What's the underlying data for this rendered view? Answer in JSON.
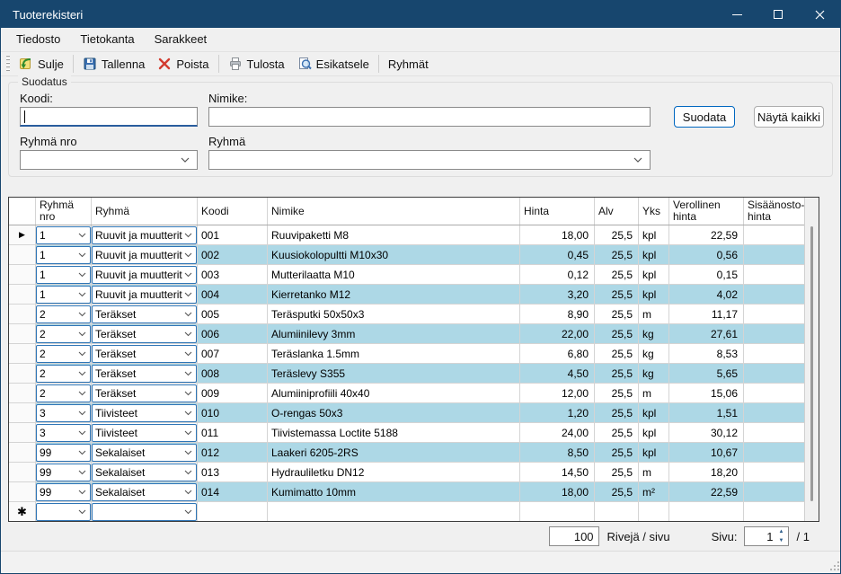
{
  "window": {
    "title": "Tuoterekisteri",
    "buttons": [
      "minimize-icon",
      "maximize-icon",
      "close-icon"
    ]
  },
  "colors": {
    "titlebar": "#17466E",
    "row_highlight": "#ADD8E6",
    "combo_border": "#2E75B6",
    "focus_accent": "#2A5D9E",
    "primary_button_border": "#0067C0"
  },
  "menu": {
    "items": [
      "Tiedosto",
      "Tietokanta",
      "Sarakkeet"
    ]
  },
  "toolbar": {
    "buttons": [
      {
        "label": "Sulje",
        "icon": "exit-icon",
        "sep_after": true
      },
      {
        "label": "Tallenna",
        "icon": "save-icon",
        "sep_after": false
      },
      {
        "label": "Poista",
        "icon": "delete-icon",
        "sep_after": true
      },
      {
        "label": "Tulosta",
        "icon": "print-icon",
        "sep_after": false
      },
      {
        "label": "Esikatsele",
        "icon": "preview-icon",
        "sep_after": true
      },
      {
        "label": "Ryhmät",
        "icon": "",
        "sep_after": false
      }
    ]
  },
  "filter": {
    "group_label": "Suodatus",
    "koodi_label": "Koodi:",
    "koodi_value": "",
    "nimike_label": "Nimike:",
    "nimike_value": "",
    "ryhma_nro_label": "Ryhmä nro",
    "ryhma_nro_value": "",
    "ryhma_label": "Ryhmä",
    "ryhma_value": "",
    "suodata_button": "Suodata",
    "nayta_kaikki_button": "Näytä kaikki"
  },
  "grid": {
    "columns": [
      "",
      "Ryhmä\nnro",
      "Ryhmä",
      "Koodi",
      "Nimike",
      "Hinta",
      "Alv",
      "Yks",
      "Verollinen\nhinta",
      "Sisäänosto-\nhinta"
    ],
    "rows": [
      {
        "marker": "arrow",
        "ryhma_nro": "1",
        "ryhma": "Ruuvit ja muutterit",
        "koodi": "001",
        "nimike": "Ruuvipaketti M8",
        "hinta": "18,00",
        "alv": "25,5",
        "yks": "kpl",
        "verollinen": "22,59",
        "sisaanosto": ""
      },
      {
        "marker": "",
        "ryhma_nro": "1",
        "ryhma": "Ruuvit ja muutterit",
        "koodi": "002",
        "nimike": "Kuusiokolopultti M10x30",
        "hinta": "0,45",
        "alv": "25,5",
        "yks": "kpl",
        "verollinen": "0,56",
        "sisaanosto": ""
      },
      {
        "marker": "",
        "ryhma_nro": "1",
        "ryhma": "Ruuvit ja muutterit",
        "koodi": "003",
        "nimike": "Mutterilaatta M10",
        "hinta": "0,12",
        "alv": "25,5",
        "yks": "kpl",
        "verollinen": "0,15",
        "sisaanosto": ""
      },
      {
        "marker": "",
        "ryhma_nro": "1",
        "ryhma": "Ruuvit ja muutterit",
        "koodi": "004",
        "nimike": "Kierretanko M12",
        "hinta": "3,20",
        "alv": "25,5",
        "yks": "kpl",
        "verollinen": "4,02",
        "sisaanosto": ""
      },
      {
        "marker": "",
        "ryhma_nro": "2",
        "ryhma": "Teräkset",
        "koodi": "005",
        "nimike": "Teräsputki 50x50x3",
        "hinta": "8,90",
        "alv": "25,5",
        "yks": "m",
        "verollinen": "11,17",
        "sisaanosto": ""
      },
      {
        "marker": "",
        "ryhma_nro": "2",
        "ryhma": "Teräkset",
        "koodi": "006",
        "nimike": "Alumiinilevy 3mm",
        "hinta": "22,00",
        "alv": "25,5",
        "yks": "kg",
        "verollinen": "27,61",
        "sisaanosto": ""
      },
      {
        "marker": "",
        "ryhma_nro": "2",
        "ryhma": "Teräkset",
        "koodi": "007",
        "nimike": "Teräslanka 1.5mm",
        "hinta": "6,80",
        "alv": "25,5",
        "yks": "kg",
        "verollinen": "8,53",
        "sisaanosto": ""
      },
      {
        "marker": "",
        "ryhma_nro": "2",
        "ryhma": "Teräkset",
        "koodi": "008",
        "nimike": "Teräslevy S355",
        "hinta": "4,50",
        "alv": "25,5",
        "yks": "kg",
        "verollinen": "5,65",
        "sisaanosto": ""
      },
      {
        "marker": "",
        "ryhma_nro": "2",
        "ryhma": "Teräkset",
        "koodi": "009",
        "nimike": "Alumiiniprofiili 40x40",
        "hinta": "12,00",
        "alv": "25,5",
        "yks": "m",
        "verollinen": "15,06",
        "sisaanosto": ""
      },
      {
        "marker": "",
        "ryhma_nro": "3",
        "ryhma": "Tiivisteet",
        "koodi": "010",
        "nimike": "O-rengas 50x3",
        "hinta": "1,20",
        "alv": "25,5",
        "yks": "kpl",
        "verollinen": "1,51",
        "sisaanosto": ""
      },
      {
        "marker": "",
        "ryhma_nro": "3",
        "ryhma": "Tiivisteet",
        "koodi": "011",
        "nimike": "Tiivistemassa Loctite 5188",
        "hinta": "24,00",
        "alv": "25,5",
        "yks": "kpl",
        "verollinen": "30,12",
        "sisaanosto": ""
      },
      {
        "marker": "",
        "ryhma_nro": "99",
        "ryhma": "Sekalaiset",
        "koodi": "012",
        "nimike": "Laakeri 6205-2RS",
        "hinta": "8,50",
        "alv": "25,5",
        "yks": "kpl",
        "verollinen": "10,67",
        "sisaanosto": ""
      },
      {
        "marker": "",
        "ryhma_nro": "99",
        "ryhma": "Sekalaiset",
        "koodi": "013",
        "nimike": "Hydrauliletku DN12",
        "hinta": "14,50",
        "alv": "25,5",
        "yks": "m",
        "verollinen": "18,20",
        "sisaanosto": ""
      },
      {
        "marker": "",
        "ryhma_nro": "99",
        "ryhma": "Sekalaiset",
        "koodi": "014",
        "nimike": "Kumimatto 10mm",
        "hinta": "18,00",
        "alv": "25,5",
        "yks": "m²",
        "verollinen": "22,59",
        "sisaanosto": ""
      },
      {
        "marker": "new",
        "ryhma_nro": "",
        "ryhma": "",
        "koodi": "",
        "nimike": "",
        "hinta": "",
        "alv": "",
        "yks": "",
        "verollinen": "",
        "sisaanosto": ""
      }
    ]
  },
  "pagination": {
    "rows_per_page": "100",
    "rows_label": "Rivejä / sivu",
    "page_label": "Sivu:",
    "page_value": "1",
    "page_total": "/ 1"
  }
}
